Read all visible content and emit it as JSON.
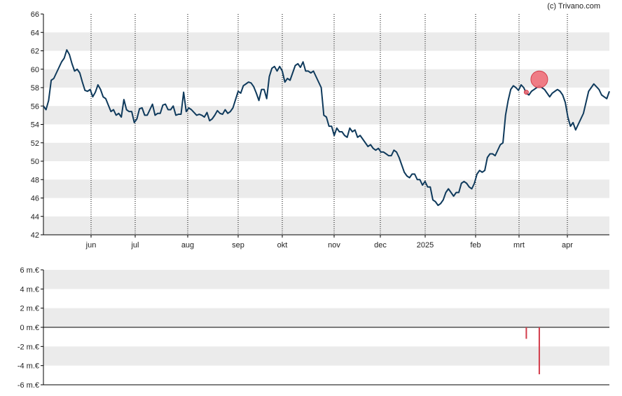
{
  "credit": "(c) Trivano.com",
  "colors": {
    "band": "#ebebeb",
    "price_line": "#0f3a5c",
    "marker": "#f0707a",
    "marker_stroke": "#d23c4a",
    "volume_bar": "#d23c4a",
    "axis": "#000000"
  },
  "chart_data": [
    {
      "type": "line",
      "title": "",
      "ylim": [
        42,
        66
      ],
      "y_ticks": [
        "66",
        "64",
        "62",
        "60",
        "58",
        "56",
        "54",
        "52",
        "50",
        "48",
        "46",
        "44",
        "42"
      ],
      "x_ticks": [
        "jun",
        "jul",
        "aug",
        "sep",
        "okt",
        "nov",
        "dec",
        "2025",
        "feb",
        "mrt",
        "apr"
      ],
      "grid": "alternating horizontal bands, dotted vertical lines at month starts",
      "series": [
        {
          "values": [
            56.0,
            55.6,
            56.6,
            58.8,
            59.0,
            59.6,
            60.2,
            60.8,
            61.2,
            62.1,
            61.6,
            60.6,
            59.8,
            60.0,
            59.6,
            58.6,
            57.7,
            57.6,
            57.8,
            57.0,
            57.5,
            58.3,
            57.8,
            57.0,
            56.8,
            56.1,
            55.4,
            55.6,
            55.0,
            55.2,
            54.8,
            56.7,
            55.6,
            55.4,
            55.4,
            54.2,
            54.6,
            55.7,
            55.8,
            55.0,
            55.0,
            55.6,
            56.2,
            55.0,
            55.2,
            55.2,
            56.1,
            56.2,
            55.6,
            55.6,
            56.0,
            55.0,
            55.1,
            55.1,
            57.5,
            55.4,
            55.8,
            55.6,
            55.3,
            55.0,
            55.1,
            55.0,
            54.8,
            55.3,
            54.4,
            54.6,
            55.0,
            55.5,
            55.2,
            55.1,
            55.6,
            55.2,
            55.4,
            55.8,
            56.7,
            57.6,
            57.4,
            58.2,
            58.4,
            58.6,
            58.5,
            58.1,
            57.4,
            56.6,
            57.8,
            57.8,
            56.8,
            59.2,
            60.1,
            60.3,
            59.8,
            60.3,
            59.8,
            58.6,
            59.0,
            58.8,
            59.6,
            60.4,
            60.6,
            60.2,
            60.8,
            59.8,
            59.8,
            59.6,
            59.8,
            59.2,
            58.6,
            58.0,
            55.0,
            54.8,
            53.8,
            53.8,
            52.8,
            53.6,
            53.2,
            53.2,
            52.8,
            52.6,
            53.6,
            53.2,
            53.4,
            52.6,
            52.8,
            52.4,
            52.0,
            51.6,
            51.8,
            51.4,
            51.2,
            51.4,
            51.0,
            51.0,
            50.8,
            50.6,
            50.6,
            51.2,
            51.0,
            50.4,
            49.6,
            48.8,
            48.4,
            48.2,
            48.6,
            48.6,
            48.0,
            48.0,
            47.4,
            47.8,
            47.2,
            47.2,
            45.8,
            45.6,
            45.2,
            45.4,
            45.8,
            46.6,
            47.0,
            46.6,
            46.2,
            46.6,
            46.6,
            47.6,
            47.8,
            47.6,
            47.2,
            47.0,
            47.6,
            48.6,
            49.0,
            48.8,
            49.0,
            50.4,
            50.8,
            50.8,
            50.6,
            51.2,
            51.8,
            52.0,
            55.0,
            56.6,
            57.8,
            58.2,
            58.0,
            57.7,
            58.3,
            58.0,
            57.4,
            57.2,
            57.6,
            57.8,
            58.0,
            58.2,
            58.0,
            57.8,
            57.4,
            57.0,
            57.4,
            57.6,
            57.8,
            57.6,
            57.2,
            56.4,
            54.8,
            53.8,
            54.2,
            53.4,
            54.0,
            54.6,
            55.2,
            56.4,
            57.6,
            58.0,
            58.4,
            58.1,
            57.8,
            57.2,
            57.0,
            56.8,
            57.6
          ]
        }
      ],
      "markers": [
        {
          "index": 186,
          "value": 57.5,
          "size": "small"
        },
        {
          "index": 191,
          "value": 58.9,
          "size": "large"
        }
      ]
    },
    {
      "type": "bar",
      "title": "",
      "ylim": [
        -6,
        6
      ],
      "y_ticks": [
        "6 m.€",
        "4 m.€",
        "2 m.€",
        "0 m.€",
        "-2 m.€",
        "-4 m.€",
        "-6 m.€"
      ],
      "grid": "alternating horizontal bands",
      "bars": [
        {
          "index": 186,
          "value": -1.2
        },
        {
          "index": 191,
          "value": -4.9
        }
      ]
    }
  ]
}
